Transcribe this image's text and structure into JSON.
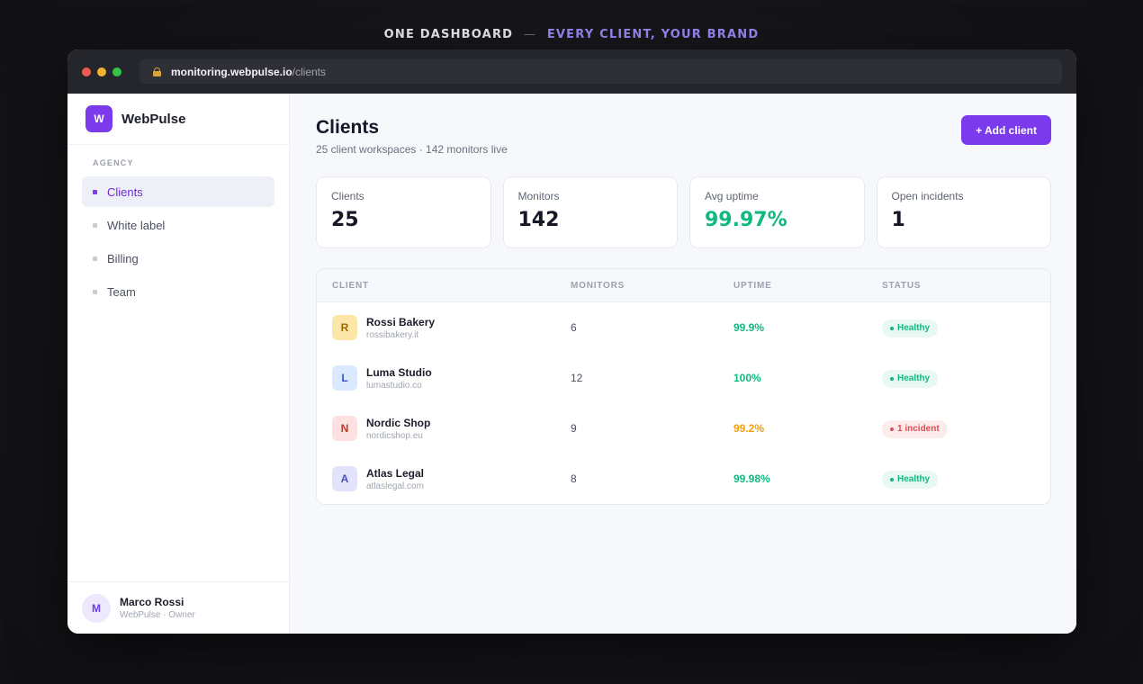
{
  "headline": {
    "left": "ONE DASHBOARD",
    "separator": "—",
    "right": "EVERY CLIENT, YOUR BRAND"
  },
  "browser": {
    "url_host": "monitoring.webpulse.io",
    "url_path": "/clients"
  },
  "sidebar": {
    "brand": {
      "logo_letter": "W",
      "name": "WebPulse"
    },
    "section_label": "AGENCY",
    "items": [
      {
        "label": "Clients",
        "active": true
      },
      {
        "label": "White label",
        "active": false
      },
      {
        "label": "Billing",
        "active": false
      },
      {
        "label": "Team",
        "active": false
      }
    ],
    "user": {
      "initial": "M",
      "name": "Marco Rossi",
      "role": "WebPulse · Owner"
    }
  },
  "main": {
    "title": "Clients",
    "subtitle": "25 client workspaces · 142 monitors live",
    "add_button": "+ Add client",
    "stats": [
      {
        "label": "Clients",
        "value": "25",
        "color": "#151726"
      },
      {
        "label": "Monitors",
        "value": "142",
        "color": "#151726"
      },
      {
        "label": "Avg uptime",
        "value": "99.97%",
        "color": "#10b981"
      },
      {
        "label": "Open incidents",
        "value": "1",
        "color": "#151726"
      }
    ],
    "table": {
      "headers": [
        "CLIENT",
        "MONITORS",
        "UPTIME",
        "STATUS"
      ],
      "rows": [
        {
          "initial": "R",
          "avatar_bg": "#fde7a8",
          "avatar_fg": "#9a6a00",
          "name": "Rossi Bakery",
          "domain": "rossibakery.it",
          "monitors": "6",
          "uptime": "99.9%",
          "uptime_color": "#10b981",
          "status": "Healthy",
          "status_kind": "healthy"
        },
        {
          "initial": "L",
          "avatar_bg": "#dbe9fe",
          "avatar_fg": "#2f5fc4",
          "name": "Luma Studio",
          "domain": "lumastudio.co",
          "monitors": "12",
          "uptime": "100%",
          "uptime_color": "#10b981",
          "status": "Healthy",
          "status_kind": "healthy"
        },
        {
          "initial": "N",
          "avatar_bg": "#fde0e0",
          "avatar_fg": "#c0392b",
          "name": "Nordic Shop",
          "domain": "nordicshop.eu",
          "monitors": "9",
          "uptime": "99.2%",
          "uptime_color": "#f59e0b",
          "status": "1 incident",
          "status_kind": "incident"
        },
        {
          "initial": "A",
          "avatar_bg": "#e3e4fb",
          "avatar_fg": "#4a4fc0",
          "name": "Atlas Legal",
          "domain": "atlaslegal.com",
          "monitors": "8",
          "uptime": "99.98%",
          "uptime_color": "#10b981",
          "status": "Healthy",
          "status_kind": "healthy"
        }
      ]
    }
  },
  "colors": {
    "accent": "#7c3aed",
    "healthy_bg": "#e9f9f1",
    "healthy_fg": "#10b981",
    "incident_bg": "#fdecec",
    "incident_fg": "#e5484d"
  },
  "icons": {
    "lock": "lock-icon",
    "window_controls": [
      "close-dot",
      "minimize-dot",
      "maximize-dot"
    ]
  }
}
